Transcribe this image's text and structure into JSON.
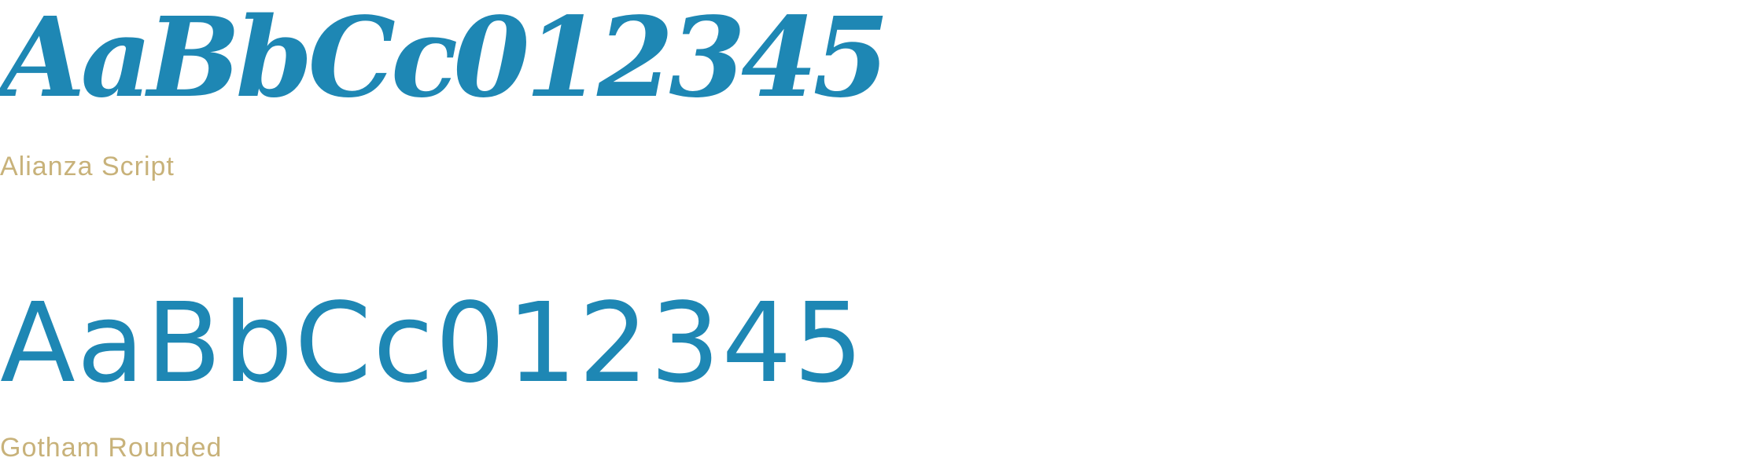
{
  "colors": {
    "specimen": "#1e87b4",
    "label": "#c8b27a"
  },
  "fonts": [
    {
      "sample": "AaBbCc012345",
      "name": "Alianza Script"
    },
    {
      "sample": "AaBbCc012345",
      "name": "Gotham Rounded"
    }
  ]
}
